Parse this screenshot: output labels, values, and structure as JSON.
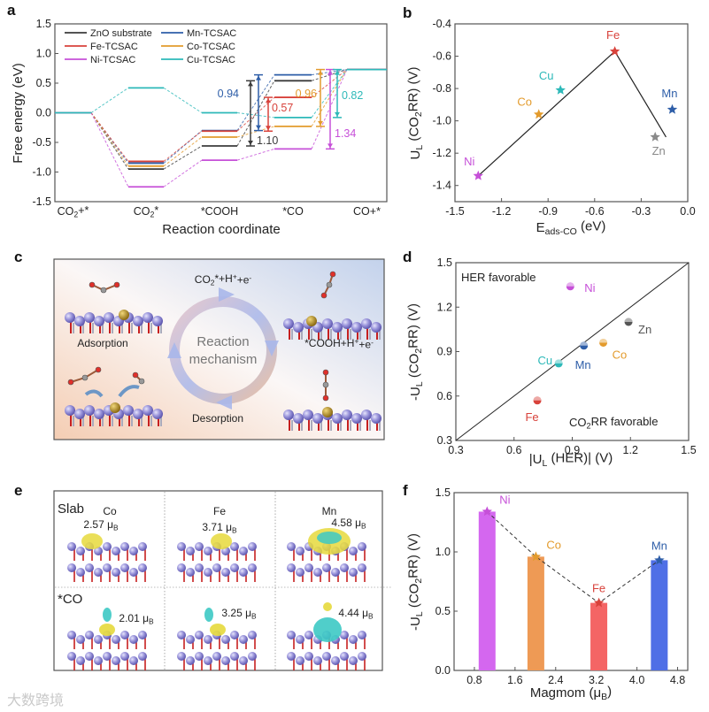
{
  "panel_labels": {
    "a": "a",
    "b": "b",
    "c": "c",
    "d": "d",
    "e": "e",
    "f": "f"
  },
  "watermark": "大数跨境",
  "chart_data": [
    {
      "id": "a",
      "type": "line",
      "title": "",
      "xlabel": "Reaction coordinate",
      "ylabel": "Free energy (eV)",
      "ylim": [
        -1.5,
        1.5
      ],
      "yticks": [
        "-1.5",
        "-1.0",
        "-0.5",
        "0.0",
        "0.5",
        "1.0",
        "1.5"
      ],
      "categories": [
        "CO_{2}+*",
        "CO_{2}*",
        "*COOH",
        "*CO",
        "CO+*"
      ],
      "series": [
        {
          "name": "ZnO substrate",
          "key": "Zn",
          "color": "#3b3b3b",
          "values": [
            0,
            -0.95,
            -0.56,
            0.54,
            0.73
          ]
        },
        {
          "name": "Mn-TCSAC",
          "key": "Mn",
          "color": "#2e5ea8",
          "values": [
            0,
            -0.85,
            -0.3,
            0.64,
            0.73
          ]
        },
        {
          "name": "Fe-TCSAC",
          "key": "Fe",
          "color": "#d8423b",
          "values": [
            0,
            -0.82,
            -0.31,
            0.26,
            0.73
          ]
        },
        {
          "name": "Co-TCSAC",
          "key": "Co",
          "color": "#e39b2d",
          "values": [
            0,
            -0.9,
            -0.41,
            -0.23,
            0.73
          ]
        },
        {
          "name": "Ni-TCSAC",
          "key": "Ni",
          "color": "#c650d8",
          "values": [
            0,
            -1.25,
            -0.8,
            -0.61,
            0.73
          ]
        },
        {
          "name": "Cu-TCSAC",
          "key": "Cu",
          "color": "#2db9b9",
          "values": [
            0,
            0.42,
            0.0,
            -0.08,
            0.73
          ]
        }
      ],
      "annotations": [
        {
          "series": "Mn",
          "label": "0.94",
          "from": -0.3,
          "to": 0.64
        },
        {
          "series": "Zn",
          "label": "1.10",
          "from": -0.56,
          "to": 0.54
        },
        {
          "series": "Fe",
          "label": "0.57",
          "from": -0.31,
          "to": 0.26
        },
        {
          "series": "Co",
          "label": "0.96",
          "from": -0.23,
          "to": 0.73
        },
        {
          "series": "Ni",
          "label": "1.34",
          "from": -0.61,
          "to": 0.73
        },
        {
          "series": "Cu",
          "label": "0.82",
          "from": -0.08,
          "to": 0.73
        }
      ],
      "legend": "top-left"
    },
    {
      "id": "b",
      "type": "scatter",
      "xlabel": "E_{ads-CO} (eV)",
      "ylabel": "U_{L} (CO_{2}RR) (V)",
      "xlim": [
        -1.5,
        0.0
      ],
      "ylim": [
        -1.5,
        -0.4
      ],
      "xticks": [
        "-1.5",
        "-1.2",
        "-0.9",
        "-0.6",
        "-0.3",
        "0.0"
      ],
      "yticks": [
        "-1.4",
        "-1.2",
        "-1.0",
        "-0.8",
        "-0.6",
        "-0.4"
      ],
      "points": [
        {
          "label": "Ni",
          "x": -1.35,
          "y": -1.34,
          "color": "#c650d8"
        },
        {
          "label": "Co",
          "x": -0.96,
          "y": -0.96,
          "color": "#e39b2d"
        },
        {
          "label": "Cu",
          "x": -0.82,
          "y": -0.81,
          "color": "#2db9b9"
        },
        {
          "label": "Fe",
          "x": -0.47,
          "y": -0.57,
          "color": "#d8423b"
        },
        {
          "label": "Zn",
          "x": -0.21,
          "y": -1.1,
          "color": "#8a8a8a"
        },
        {
          "label": "Mn",
          "x": -0.1,
          "y": -0.93,
          "color": "#2e5ea8"
        }
      ],
      "trend_line": [
        [
          -1.35,
          -1.34
        ],
        [
          -0.47,
          -0.57
        ],
        [
          -0.14,
          -1.1
        ]
      ]
    },
    {
      "id": "d",
      "type": "scatter",
      "xlabel": "|U_{L} (HER)| (V)",
      "ylabel": "-U_{L} (CO_{2}RR) (V)",
      "xlim": [
        0.3,
        1.5
      ],
      "ylim": [
        0.3,
        1.5
      ],
      "xticks": [
        "0.3",
        "0.6",
        "0.9",
        "1.2",
        "1.5"
      ],
      "yticks": [
        "0.3",
        "0.6",
        "0.9",
        "1.2",
        "1.5"
      ],
      "region_labels": {
        "upper": "HER favorable",
        "lower": "CO_{2}RR favorable"
      },
      "points": [
        {
          "label": "Ni",
          "x": 0.89,
          "y": 1.34,
          "color": "#c650d8"
        },
        {
          "label": "Zn",
          "x": 1.19,
          "y": 1.1,
          "color": "#555555"
        },
        {
          "label": "Co",
          "x": 1.06,
          "y": 0.96,
          "color": "#e39b2d"
        },
        {
          "label": "Mn",
          "x": 0.96,
          "y": 0.94,
          "color": "#2e5ea8"
        },
        {
          "label": "Cu",
          "x": 0.83,
          "y": 0.82,
          "color": "#2db9b9"
        },
        {
          "label": "Fe",
          "x": 0.72,
          "y": 0.57,
          "color": "#d8423b"
        }
      ],
      "diagonal": [
        [
          0.3,
          0.3
        ],
        [
          1.5,
          1.5
        ]
      ]
    },
    {
      "id": "f",
      "type": "bar",
      "xlabel": "Magmom (μ_{B})",
      "ylabel": "-U_{L} (CO_{2}RR) (V)",
      "xlim": [
        0.4,
        5.0
      ],
      "ylim": [
        0,
        1.5
      ],
      "xticks": [
        "0.8",
        "1.6",
        "2.4",
        "3.2",
        "4.0",
        "4.8"
      ],
      "yticks": [
        "0.0",
        "0.5",
        "1.0",
        "1.5"
      ],
      "bars": [
        {
          "label": "Ni",
          "x": 1.05,
          "value": 1.34,
          "color": "#d467ef"
        },
        {
          "label": "Co",
          "x": 2.01,
          "value": 0.96,
          "color": "#ee9a55"
        },
        {
          "label": "Fe",
          "x": 3.25,
          "value": 0.57,
          "color": "#f46565"
        },
        {
          "label": "Mn",
          "x": 4.44,
          "value": 0.93,
          "color": "#4f6fe6"
        }
      ],
      "label_colors": {
        "Ni": "#c650d8",
        "Co": "#e39b2d",
        "Fe": "#d8423b",
        "Mn": "#2e5ea8"
      }
    }
  ],
  "panel_c": {
    "top": "CO_{2}*+H^{+}+e^{-}",
    "center_line1": "Reaction",
    "center_line2": "mechanism",
    "left": "Adsorption",
    "right": "*COOH+H^{+}+e^{-}",
    "bottom": "Desorption"
  },
  "panel_e": {
    "row_labels": [
      "Slab",
      "*CO"
    ],
    "columns": [
      "Co",
      "Fe",
      "Mn"
    ],
    "slab_moments": [
      "2.57 μ_{B}",
      "3.71 μ_{B}",
      "4.58 μ_{B}"
    ],
    "co_moments": [
      "2.01 μ_{B}",
      "3.25 μ_{B}",
      "4.44 μ_{B}"
    ]
  }
}
